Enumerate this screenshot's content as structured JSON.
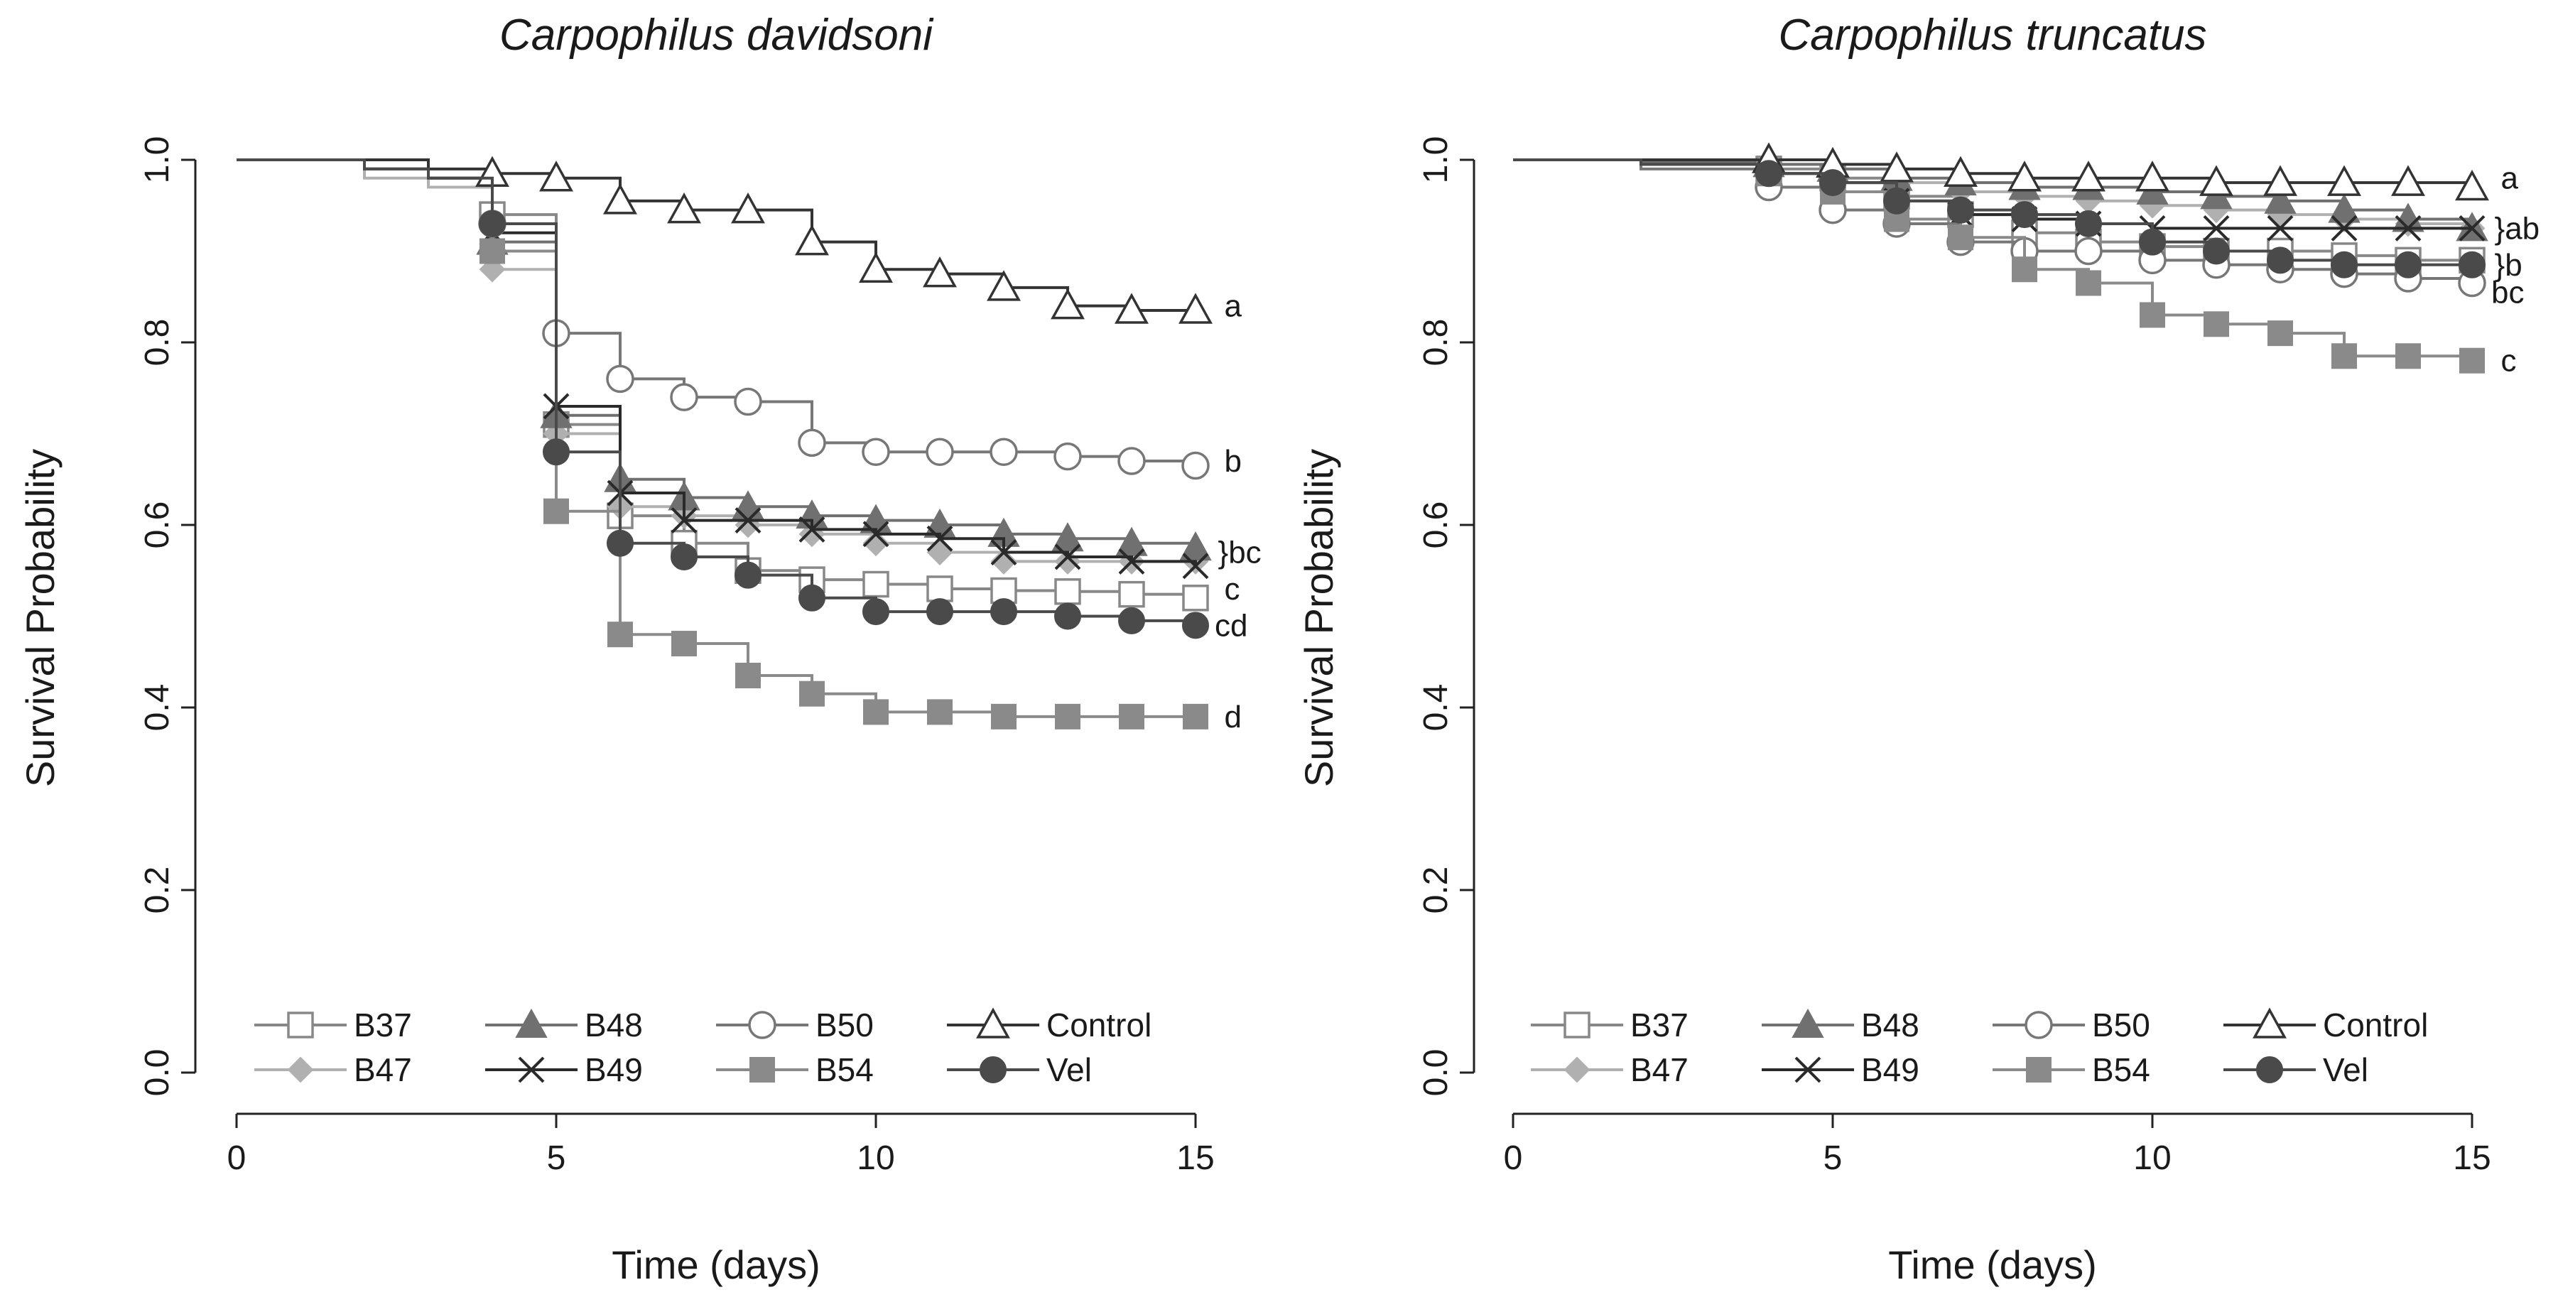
{
  "chart_data": [
    {
      "type": "line",
      "step": true,
      "title": "Carpophilus davidsoni",
      "xlabel": "Time (days)",
      "ylabel": "Survival Probability",
      "xlim": [
        0,
        15
      ],
      "ylim": [
        0,
        1
      ],
      "xticks": [
        "0",
        "5",
        "10",
        "15"
      ],
      "yticks": [
        "0.0",
        "0.2",
        "0.4",
        "0.6",
        "0.8",
        "1.0"
      ],
      "legend_position": "bottom-left",
      "series": [
        {
          "name": "B37",
          "color": "#888888",
          "marker": "open-square",
          "x": [
            0,
            2,
            3,
            4,
            5,
            6,
            7,
            8,
            9,
            10,
            11,
            12,
            13,
            14,
            15
          ],
          "y": [
            1.0,
            0.99,
            0.98,
            0.94,
            0.71,
            0.61,
            0.58,
            0.55,
            0.54,
            0.535,
            0.53,
            0.528,
            0.527,
            0.524,
            0.52
          ]
        },
        {
          "name": "B47",
          "color": "#b0b0b0",
          "marker": "diamond",
          "x": [
            0,
            2,
            3,
            4,
            5,
            6,
            7,
            8,
            9,
            10,
            11,
            12,
            13,
            14,
            15
          ],
          "y": [
            1.0,
            0.98,
            0.97,
            0.88,
            0.7,
            0.62,
            0.61,
            0.6,
            0.59,
            0.58,
            0.57,
            0.56,
            0.56,
            0.56,
            0.56
          ]
        },
        {
          "name": "B48",
          "color": "#707070",
          "marker": "filled-triangle",
          "x": [
            0,
            2,
            3,
            4,
            5,
            6,
            7,
            8,
            9,
            10,
            11,
            12,
            13,
            14,
            15
          ],
          "y": [
            1.0,
            0.99,
            0.98,
            0.91,
            0.72,
            0.65,
            0.63,
            0.62,
            0.61,
            0.605,
            0.6,
            0.59,
            0.585,
            0.58,
            0.575
          ]
        },
        {
          "name": "B49",
          "color": "#2a2a2a",
          "marker": "cross",
          "x": [
            0,
            2,
            3,
            4,
            5,
            6,
            7,
            8,
            9,
            10,
            11,
            12,
            13,
            14,
            15
          ],
          "y": [
            1.0,
            0.99,
            0.98,
            0.92,
            0.73,
            0.635,
            0.605,
            0.605,
            0.595,
            0.59,
            0.585,
            0.57,
            0.565,
            0.56,
            0.555
          ]
        },
        {
          "name": "B50",
          "color": "#777777",
          "marker": "open-circle",
          "x": [
            0,
            2,
            3,
            4,
            5,
            6,
            7,
            8,
            9,
            10,
            11,
            12,
            13,
            14,
            15
          ],
          "y": [
            1.0,
            0.99,
            0.98,
            0.93,
            0.81,
            0.76,
            0.74,
            0.735,
            0.69,
            0.68,
            0.68,
            0.68,
            0.675,
            0.67,
            0.665
          ]
        },
        {
          "name": "B54",
          "color": "#8a8a8a",
          "marker": "filled-square",
          "x": [
            0,
            2,
            3,
            4,
            5,
            6,
            7,
            8,
            9,
            10,
            11,
            12,
            13,
            14,
            15
          ],
          "y": [
            1.0,
            0.99,
            0.98,
            0.9,
            0.615,
            0.48,
            0.47,
            0.435,
            0.415,
            0.395,
            0.395,
            0.39,
            0.39,
            0.39,
            0.39
          ]
        },
        {
          "name": "Control",
          "color": "#333333",
          "marker": "open-triangle",
          "x": [
            0,
            2,
            3,
            4,
            5,
            6,
            7,
            8,
            9,
            10,
            11,
            12,
            13,
            14,
            15
          ],
          "y": [
            1.0,
            1.0,
            0.99,
            0.985,
            0.98,
            0.955,
            0.945,
            0.945,
            0.91,
            0.88,
            0.875,
            0.86,
            0.84,
            0.835,
            0.835
          ]
        },
        {
          "name": "Vel",
          "color": "#4a4a4a",
          "marker": "filled-circle",
          "x": [
            0,
            2,
            3,
            4,
            5,
            6,
            7,
            8,
            9,
            10,
            11,
            12,
            13,
            14,
            15
          ],
          "y": [
            1.0,
            0.99,
            0.98,
            0.93,
            0.68,
            0.58,
            0.565,
            0.545,
            0.52,
            0.505,
            0.505,
            0.505,
            0.5,
            0.495,
            0.49
          ]
        }
      ],
      "annotations": [
        {
          "text": "a",
          "x": 15.45,
          "y": 0.84
        },
        {
          "text": "b",
          "x": 15.45,
          "y": 0.67
        },
        {
          "text": "}bc",
          "x": 15.35,
          "y": 0.57
        },
        {
          "text": "c",
          "x": 15.45,
          "y": 0.53
        },
        {
          "text": "cd",
          "x": 15.3,
          "y": 0.49
        },
        {
          "text": "d",
          "x": 15.45,
          "y": 0.39
        }
      ]
    },
    {
      "type": "line",
      "step": true,
      "title": "Carpophilus truncatus",
      "xlabel": "Time (days)",
      "ylabel": "Survival Probability",
      "xlim": [
        0,
        15
      ],
      "ylim": [
        0,
        1
      ],
      "xticks": [
        "0",
        "5",
        "10",
        "15"
      ],
      "yticks": [
        "0.0",
        "0.2",
        "0.4",
        "0.6",
        "0.8",
        "1.0"
      ],
      "legend_position": "bottom-left",
      "series": [
        {
          "name": "B37",
          "color": "#888888",
          "marker": "open-square",
          "x": [
            0,
            2,
            4,
            5,
            6,
            7,
            8,
            9,
            10,
            11,
            12,
            13,
            14,
            15
          ],
          "y": [
            1.0,
            0.995,
            0.99,
            0.98,
            0.96,
            0.94,
            0.92,
            0.91,
            0.905,
            0.9,
            0.9,
            0.895,
            0.89,
            0.89
          ]
        },
        {
          "name": "B47",
          "color": "#b0b0b0",
          "marker": "diamond",
          "x": [
            0,
            2,
            4,
            5,
            6,
            7,
            8,
            9,
            10,
            11,
            12,
            13,
            14,
            15
          ],
          "y": [
            1.0,
            0.998,
            0.995,
            0.99,
            0.975,
            0.965,
            0.96,
            0.955,
            0.95,
            0.945,
            0.94,
            0.935,
            0.93,
            0.925
          ]
        },
        {
          "name": "B48",
          "color": "#707070",
          "marker": "filled-triangle",
          "x": [
            0,
            2,
            4,
            5,
            6,
            7,
            8,
            9,
            10,
            11,
            12,
            13,
            14,
            15
          ],
          "y": [
            1.0,
            0.998,
            0.995,
            0.99,
            0.98,
            0.975,
            0.97,
            0.97,
            0.965,
            0.96,
            0.955,
            0.945,
            0.935,
            0.925
          ]
        },
        {
          "name": "B49",
          "color": "#2a2a2a",
          "marker": "cross",
          "x": [
            0,
            2,
            4,
            5,
            6,
            7,
            8,
            9,
            10,
            11,
            12,
            13,
            14,
            15
          ],
          "y": [
            1.0,
            0.995,
            0.985,
            0.975,
            0.955,
            0.94,
            0.935,
            0.93,
            0.925,
            0.925,
            0.925,
            0.925,
            0.925,
            0.925
          ]
        },
        {
          "name": "B50",
          "color": "#777777",
          "marker": "open-circle",
          "x": [
            0,
            2,
            4,
            5,
            6,
            7,
            8,
            9,
            10,
            11,
            12,
            13,
            14,
            15
          ],
          "y": [
            1.0,
            0.99,
            0.97,
            0.945,
            0.93,
            0.91,
            0.9,
            0.9,
            0.89,
            0.885,
            0.88,
            0.875,
            0.87,
            0.865
          ]
        },
        {
          "name": "B54",
          "color": "#8a8a8a",
          "marker": "filled-square",
          "x": [
            0,
            2,
            4,
            5,
            6,
            7,
            8,
            9,
            10,
            11,
            12,
            13,
            14,
            15
          ],
          "y": [
            1.0,
            0.995,
            0.985,
            0.965,
            0.935,
            0.915,
            0.88,
            0.865,
            0.83,
            0.82,
            0.81,
            0.785,
            0.785,
            0.78
          ]
        },
        {
          "name": "Control",
          "color": "#333333",
          "marker": "open-triangle",
          "x": [
            0,
            2,
            4,
            5,
            6,
            7,
            8,
            9,
            10,
            11,
            12,
            13,
            14,
            15
          ],
          "y": [
            1.0,
            1.0,
            1.0,
            0.995,
            0.99,
            0.985,
            0.98,
            0.98,
            0.98,
            0.975,
            0.975,
            0.975,
            0.975,
            0.97
          ]
        },
        {
          "name": "Vel",
          "color": "#4a4a4a",
          "marker": "filled-circle",
          "x": [
            0,
            2,
            4,
            5,
            6,
            7,
            8,
            9,
            10,
            11,
            12,
            13,
            14,
            15
          ],
          "y": [
            1.0,
            0.995,
            0.985,
            0.975,
            0.955,
            0.945,
            0.94,
            0.93,
            0.91,
            0.9,
            0.89,
            0.885,
            0.885,
            0.885
          ]
        }
      ],
      "annotations": [
        {
          "text": "a",
          "x": 15.45,
          "y": 0.98
        },
        {
          "text": "}ab",
          "x": 15.35,
          "y": 0.925
        },
        {
          "text": "}b",
          "x": 15.35,
          "y": 0.885
        },
        {
          "text": "bc",
          "x": 15.3,
          "y": 0.855
        },
        {
          "text": "c",
          "x": 15.45,
          "y": 0.78
        }
      ]
    }
  ]
}
